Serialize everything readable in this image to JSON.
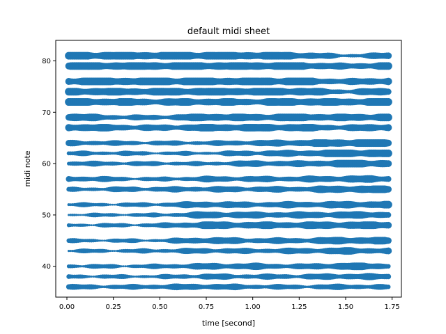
{
  "chart_data": {
    "type": "scatter",
    "title": "default midi sheet",
    "xlabel": "time [second]",
    "ylabel": "midi note",
    "xlim": [
      -0.06,
      1.8
    ],
    "ylim": [
      34,
      84
    ],
    "xticks": [
      0.0,
      0.25,
      0.5,
      0.75,
      1.0,
      1.25,
      1.5,
      1.75
    ],
    "xtick_labels": [
      "0.00",
      "0.25",
      "0.50",
      "0.75",
      "1.00",
      "1.25",
      "1.50",
      "1.75"
    ],
    "yticks": [
      40,
      50,
      60,
      70,
      80
    ],
    "ytick_labels": [
      "40",
      "50",
      "60",
      "70",
      "80"
    ],
    "grid": false,
    "marker_color": "#1f77b4",
    "time_range": [
      0.01,
      1.73
    ],
    "notes": [
      36,
      38,
      40,
      43,
      45,
      48,
      50,
      52,
      55,
      57,
      60,
      62,
      64,
      67,
      69,
      72,
      74,
      76,
      79,
      81
    ],
    "note_profiles": [
      {
        "note": 36,
        "t": [
          0.0,
          0.3,
          0.5,
          0.75,
          1.0,
          1.25,
          1.5,
          1.75
        ],
        "level": [
          0.5,
          0.4,
          0.55,
          0.7,
          0.5,
          0.4,
          0.6,
          0.4
        ]
      },
      {
        "note": 38,
        "t": [
          0.0,
          0.3,
          0.5,
          0.75,
          1.0,
          1.25,
          1.5,
          1.75
        ],
        "level": [
          0.4,
          0.3,
          0.3,
          0.6,
          0.5,
          0.5,
          0.7,
          0.6
        ]
      },
      {
        "note": 40,
        "t": [
          0.0,
          0.3,
          0.5,
          0.75,
          1.0,
          1.25,
          1.5,
          1.75
        ],
        "level": [
          0.4,
          0.3,
          0.4,
          0.7,
          0.7,
          0.5,
          0.9,
          0.7
        ]
      },
      {
        "note": 43,
        "t": [
          0.0,
          0.3,
          0.5,
          0.75,
          1.0,
          1.25,
          1.5,
          1.75
        ],
        "level": [
          0.3,
          0.3,
          0.4,
          0.6,
          0.5,
          0.6,
          0.8,
          0.6
        ]
      },
      {
        "note": 45,
        "t": [
          0.0,
          0.3,
          0.5,
          0.75,
          1.0,
          1.25,
          1.5,
          1.75
        ],
        "level": [
          0.3,
          0.3,
          0.3,
          0.8,
          0.6,
          0.6,
          0.9,
          0.8
        ]
      },
      {
        "note": 48,
        "t": [
          0.0,
          0.3,
          0.5,
          0.75,
          1.0,
          1.25,
          1.5,
          1.75
        ],
        "level": [
          0.3,
          0.3,
          0.4,
          0.9,
          0.8,
          0.8,
          0.9,
          0.9
        ]
      },
      {
        "note": 50,
        "t": [
          0.0,
          0.3,
          0.5,
          0.75,
          1.0,
          1.25,
          1.5,
          1.75
        ],
        "level": [
          0.2,
          0.3,
          0.3,
          0.8,
          0.7,
          0.7,
          0.8,
          0.8
        ]
      },
      {
        "note": 52,
        "t": [
          0.0,
          0.3,
          0.5,
          0.75,
          1.0,
          1.25,
          1.5,
          1.75
        ],
        "level": [
          0.3,
          0.3,
          0.4,
          0.8,
          0.6,
          0.7,
          0.8,
          0.9
        ]
      },
      {
        "note": 55,
        "t": [
          0.0,
          0.3,
          0.5,
          0.75,
          1.0,
          1.25,
          1.5,
          1.75
        ],
        "level": [
          0.3,
          0.5,
          0.5,
          0.6,
          0.6,
          0.6,
          0.9,
          0.9
        ]
      },
      {
        "note": 57,
        "t": [
          0.0,
          0.3,
          0.5,
          0.75,
          1.0,
          1.25,
          1.5,
          1.75
        ],
        "level": [
          0.7,
          0.4,
          0.3,
          0.6,
          0.6,
          0.6,
          0.8,
          0.8
        ]
      },
      {
        "note": 60,
        "t": [
          0.0,
          0.3,
          0.5,
          0.75,
          1.0,
          1.25,
          1.5,
          1.75
        ],
        "level": [
          0.5,
          0.4,
          0.4,
          0.3,
          0.7,
          0.6,
          1.0,
          0.9
        ]
      },
      {
        "note": 62,
        "t": [
          0.0,
          0.3,
          0.5,
          0.75,
          1.0,
          1.25,
          1.5,
          1.75
        ],
        "level": [
          0.4,
          0.4,
          0.3,
          0.3,
          0.6,
          0.7,
          1.0,
          0.9
        ]
      },
      {
        "note": 64,
        "t": [
          0.0,
          0.3,
          0.5,
          0.75,
          1.0,
          1.25,
          1.5,
          1.75
        ],
        "level": [
          0.6,
          0.4,
          0.4,
          0.4,
          0.6,
          0.8,
          1.0,
          1.0
        ]
      },
      {
        "note": 67,
        "t": [
          0.0,
          0.3,
          0.5,
          0.75,
          1.0,
          1.25,
          1.5,
          1.75
        ],
        "level": [
          1.0,
          0.7,
          0.6,
          0.9,
          0.9,
          0.9,
          0.6,
          1.0
        ]
      },
      {
        "note": 69,
        "t": [
          0.0,
          0.3,
          0.5,
          0.75,
          1.0,
          1.25,
          1.5,
          1.75
        ],
        "level": [
          1.0,
          0.5,
          0.5,
          1.0,
          0.8,
          1.0,
          0.8,
          1.0
        ]
      },
      {
        "note": 72,
        "t": [
          0.0,
          0.3,
          0.5,
          0.75,
          1.0,
          1.25,
          1.5,
          1.75
        ],
        "level": [
          1.0,
          0.9,
          0.8,
          0.9,
          0.8,
          1.0,
          0.9,
          1.0
        ]
      },
      {
        "note": 74,
        "t": [
          0.0,
          0.3,
          0.5,
          0.75,
          1.0,
          1.25,
          1.5,
          1.75
        ],
        "level": [
          1.0,
          0.9,
          0.9,
          1.0,
          1.0,
          1.0,
          0.5,
          1.0
        ]
      },
      {
        "note": 76,
        "t": [
          0.0,
          0.3,
          0.5,
          0.75,
          1.0,
          1.25,
          1.5,
          1.75
        ],
        "level": [
          1.0,
          1.0,
          1.0,
          1.0,
          1.0,
          1.0,
          0.6,
          1.0
        ]
      },
      {
        "note": 79,
        "t": [
          0.0,
          0.3,
          0.5,
          0.75,
          1.0,
          1.25,
          1.5,
          1.75
        ],
        "level": [
          1.0,
          1.0,
          1.0,
          1.0,
          1.0,
          1.0,
          0.6,
          1.0
        ]
      },
      {
        "note": 81,
        "t": [
          0.0,
          0.3,
          0.5,
          0.75,
          1.0,
          1.25,
          1.5,
          1.75
        ],
        "level": [
          1.0,
          1.0,
          1.0,
          1.0,
          1.0,
          0.9,
          0.3,
          0.8
        ]
      }
    ]
  }
}
